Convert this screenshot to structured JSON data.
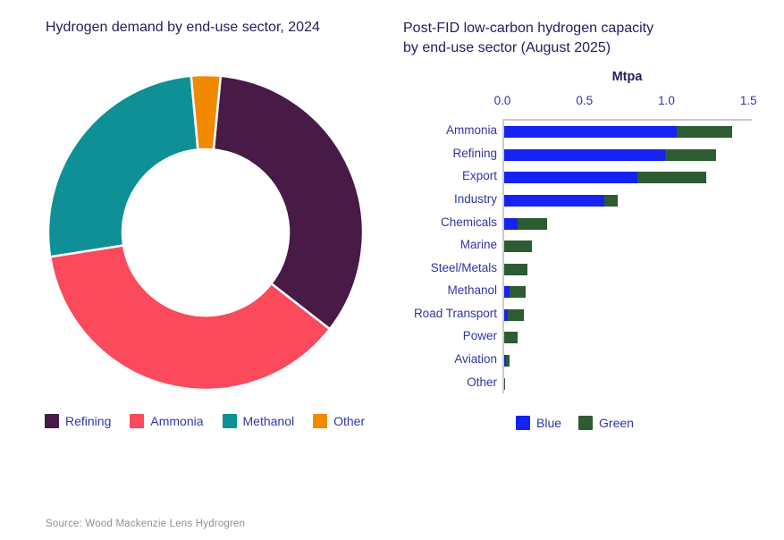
{
  "source_note": "Source: Wood Mackenzie Lens Hydrogren",
  "theme": {
    "background": "#FFFFFF",
    "title_color": "#23205F",
    "label_color": "#2F36A5",
    "axis_color": "#C9C9CE",
    "source_color": "#8F8F97"
  },
  "chart_data": [
    {
      "type": "pie",
      "subtype": "donut",
      "title": "Hydrogen demand by end-use sector, 2024",
      "labels": [
        "Refining",
        "Ammonia",
        "Methanol",
        "Other"
      ],
      "values_percent": [
        34,
        37,
        26,
        3
      ],
      "colors": [
        "#481A46",
        "#FA4A5C",
        "#0E9096",
        "#F18A00"
      ],
      "start_angle_deg": 5.5,
      "legend_position": "bottom",
      "note": "share of demand estimated from arc angles"
    },
    {
      "type": "bar",
      "orientation": "horizontal",
      "stacked": true,
      "title": "Post-FID low-carbon hydrogen capacity by end-use sector (August 2025)",
      "title_lines": [
        "Post-FID low-carbon hydrogen capacity",
        "by end-use sector (August 2025)"
      ],
      "xlabel": "Mtpa",
      "xlim": [
        0,
        1.5
      ],
      "x_ticks": [
        0,
        0.5,
        1,
        1.5
      ],
      "x_tick_labels": [
        "0.0",
        "0.5",
        "1.0",
        "1.5"
      ],
      "grid": false,
      "legend_position": "bottom",
      "categories": [
        "Ammonia",
        "Refining",
        "Export",
        "Industry",
        "Chemicals",
        "Marine",
        "Steel/Metals",
        "Methanol",
        "Road Transport",
        "Power",
        "Aviation",
        "Other"
      ],
      "series": [
        {
          "name": "Blue",
          "color": "#1522F0",
          "values": [
            1.05,
            0.98,
            0.81,
            0.61,
            0.08,
            0,
            0,
            0.03,
            0.02,
            0,
            0.01,
            0
          ]
        },
        {
          "name": "Green",
          "color": "#2D5C32",
          "values": [
            0.34,
            0.31,
            0.42,
            0.08,
            0.18,
            0.17,
            0.14,
            0.1,
            0.1,
            0.08,
            0.025,
            0.005
          ]
        }
      ]
    }
  ]
}
